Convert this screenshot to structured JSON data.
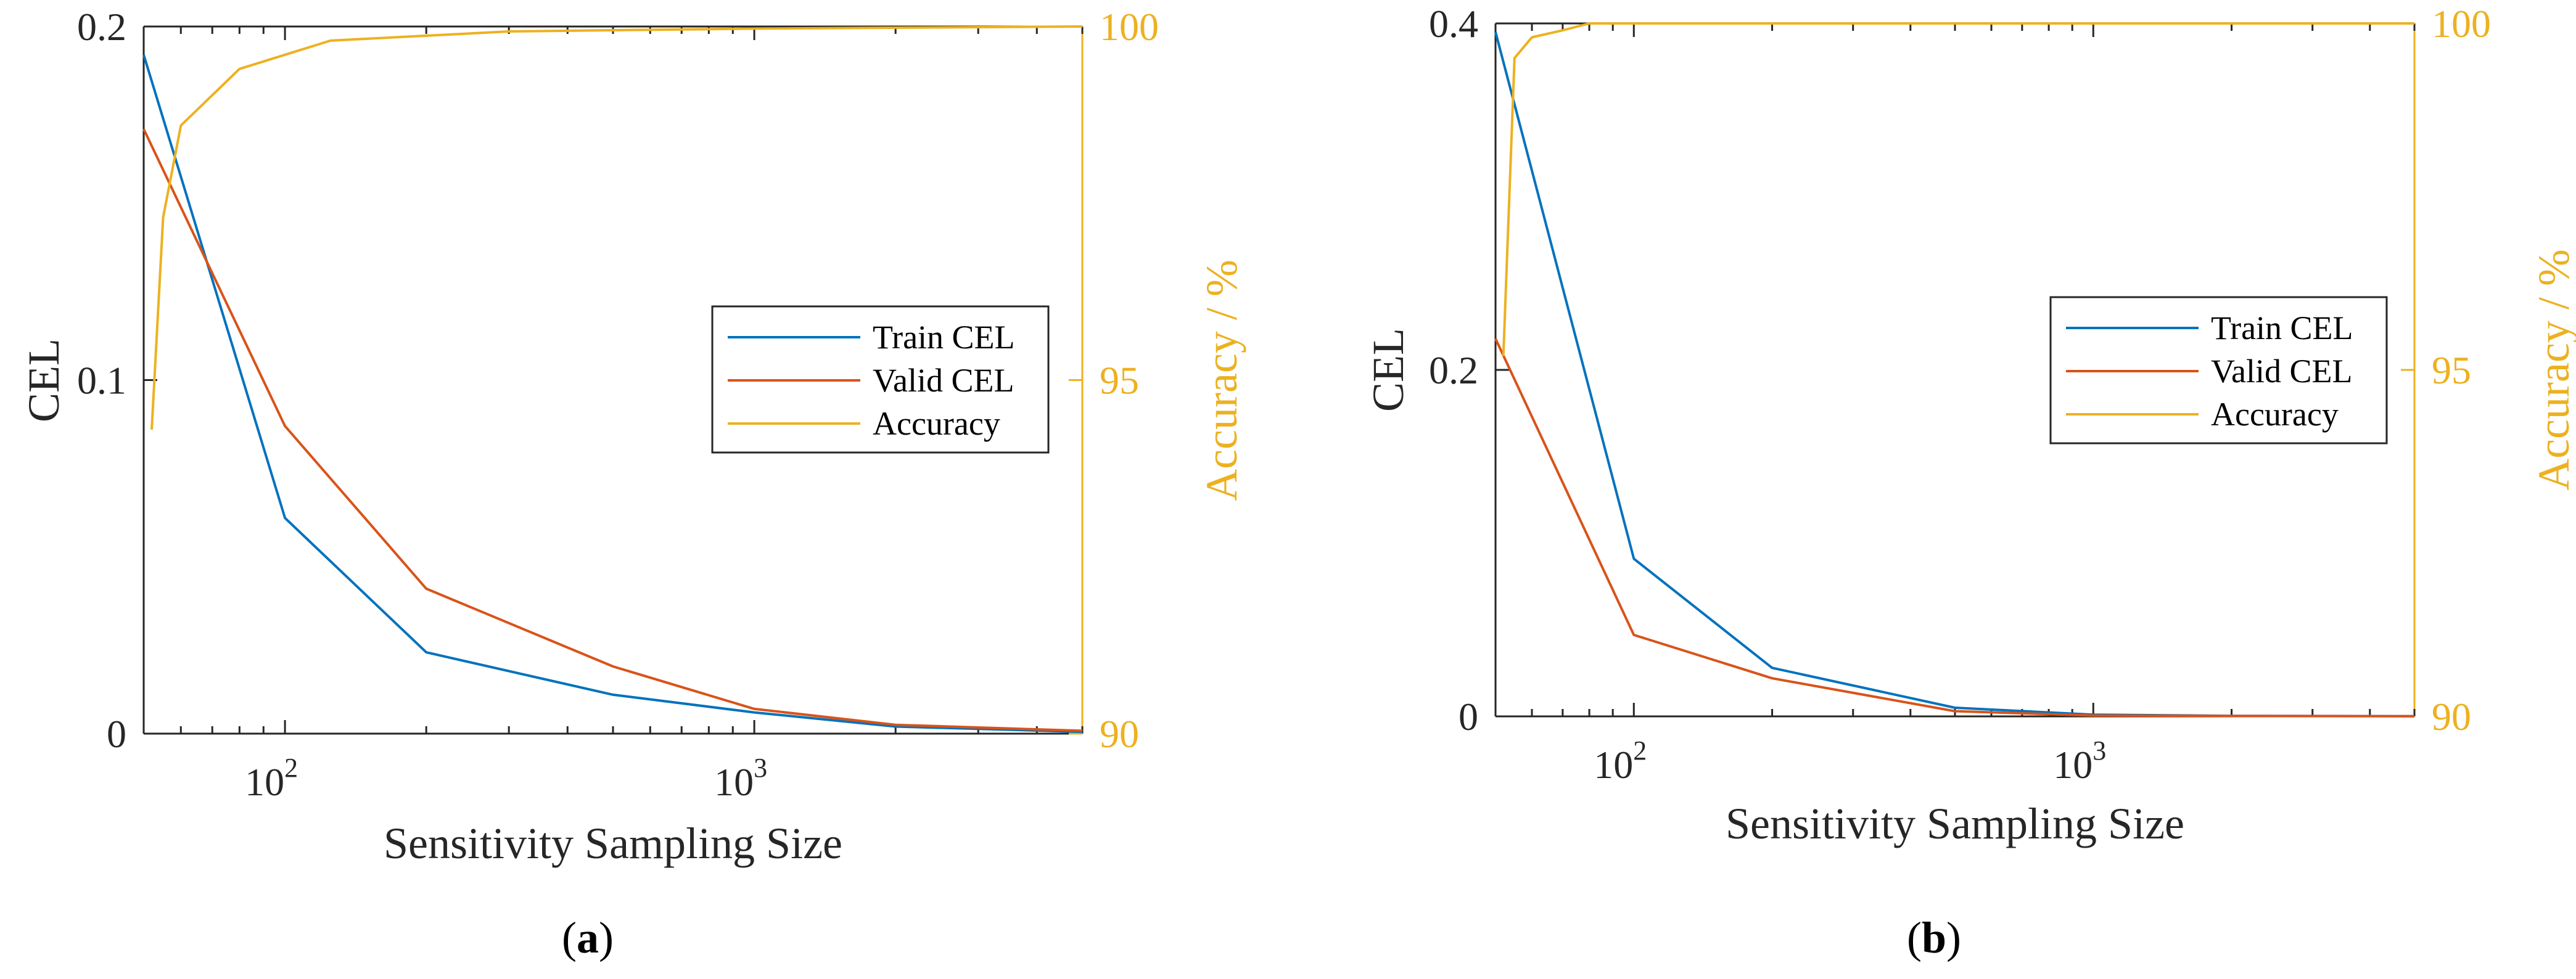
{
  "chart_data": [
    {
      "panel": "a",
      "type": "line",
      "title": "",
      "caption": "(a)",
      "xlabel": "Sensitivity Sampling Size",
      "xscale": "log",
      "xlim": [
        50,
        5000
      ],
      "ylabel": "CEL",
      "ylim": [
        0,
        0.2
      ],
      "yticks": [
        0,
        0.1,
        0.2
      ],
      "y2label": "Accuracy / %",
      "y2lim": [
        90,
        100
      ],
      "y2ticks": [
        90,
        95,
        100
      ],
      "legend": {
        "position": "center-right",
        "entries": [
          "Train CEL",
          "Valid CEL",
          "Accuracy"
        ]
      },
      "series": [
        {
          "name": "Train CEL",
          "axis": "left",
          "color": "#0072BD",
          "x": [
            50,
            100,
            200,
            500,
            1000,
            2000,
            5000
          ],
          "y": [
            0.192,
            0.061,
            0.023,
            0.011,
            0.006,
            0.002,
            0.0005
          ]
        },
        {
          "name": "Valid CEL",
          "axis": "left",
          "color": "#D95319",
          "x": [
            50,
            100,
            200,
            500,
            1000,
            2000,
            5000
          ],
          "y": [
            0.171,
            0.087,
            0.041,
            0.019,
            0.007,
            0.0025,
            0.0008
          ]
        },
        {
          "name": "Accuracy",
          "axis": "right",
          "color": "#EDB120",
          "x": [
            52,
            55,
            60,
            80,
            125,
            300,
            1000,
            5000
          ],
          "y": [
            94.3,
            97.3,
            98.6,
            99.4,
            99.8,
            99.93,
            99.97,
            100
          ]
        }
      ]
    },
    {
      "panel": "b",
      "type": "line",
      "title": "",
      "caption": "(b)",
      "xlabel": "Sensitivity Sampling Size",
      "xscale": "log",
      "xlim": [
        50,
        5000
      ],
      "ylabel": "CEL",
      "ylim": [
        0,
        0.4
      ],
      "yticks": [
        0,
        0.2,
        0.4
      ],
      "y2label": "Accuracy / %",
      "y2lim": [
        90,
        100
      ],
      "y2ticks": [
        90,
        95,
        100
      ],
      "legend": {
        "position": "center-right",
        "entries": [
          "Train CEL",
          "Valid CEL",
          "Accuracy"
        ]
      },
      "series": [
        {
          "name": "Train CEL",
          "axis": "left",
          "color": "#0072BD",
          "x": [
            50,
            100,
            200,
            500,
            1000,
            2000,
            5000
          ],
          "y": [
            0.395,
            0.091,
            0.028,
            0.005,
            0.001,
            0.0003,
            0.0001
          ]
        },
        {
          "name": "Valid CEL",
          "axis": "left",
          "color": "#D95319",
          "x": [
            50,
            100,
            200,
            500,
            1000,
            2000,
            5000
          ],
          "y": [
            0.218,
            0.047,
            0.022,
            0.003,
            0.0005,
            0.0002,
            0.0001
          ]
        },
        {
          "name": "Accuracy",
          "axis": "right",
          "color": "#EDB120",
          "x": [
            52,
            55,
            60,
            70,
            80,
            125,
            5000
          ],
          "y": [
            95.2,
            99.5,
            99.8,
            99.9,
            100,
            100,
            100
          ]
        }
      ]
    }
  ]
}
